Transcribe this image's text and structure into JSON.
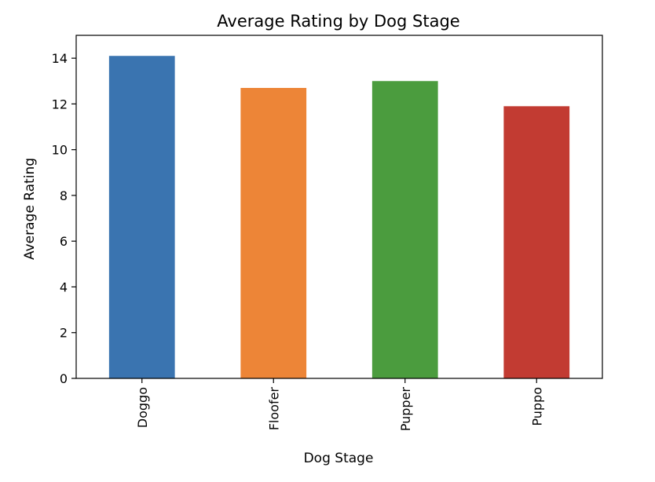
{
  "chart_data": {
    "type": "bar",
    "title": "Average Rating by Dog Stage",
    "xlabel": "Dog Stage",
    "ylabel": "Average Rating",
    "categories": [
      "Doggo",
      "Floofer",
      "Pupper",
      "Puppo"
    ],
    "values": [
      14.1,
      12.7,
      13.0,
      11.9
    ],
    "colors": [
      "#3a74b0",
      "#ed8537",
      "#4b9c3e",
      "#c23b32"
    ],
    "ylim": [
      0,
      15
    ],
    "yticks": [
      0,
      2,
      4,
      6,
      8,
      10,
      12,
      14
    ],
    "grid": false,
    "legend": "none"
  }
}
